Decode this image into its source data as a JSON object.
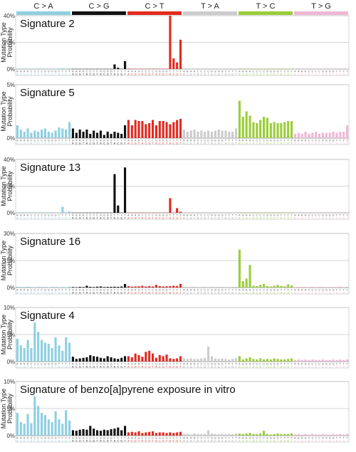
{
  "header": {
    "groups": [
      {
        "label": "C > A",
        "color": "#8ecfe0"
      },
      {
        "label": "C > G",
        "color": "#111111"
      },
      {
        "label": "C > T",
        "color": "#e32a20"
      },
      {
        "label": "T > A",
        "color": "#cccccc"
      },
      {
        "label": "T > C",
        "color": "#9acd3a"
      },
      {
        "label": "T > G",
        "color": "#efb7d6"
      }
    ]
  },
  "ylabel_line1": "Mutation Type",
  "ylabel_line2": "Probability",
  "contexts": [
    "A.A",
    "A.C",
    "A.G",
    "A.T",
    "C.A",
    "C.C",
    "C.G",
    "C.T",
    "G.A",
    "G.C",
    "G.G",
    "G.T",
    "T.A",
    "T.C",
    "T.G",
    "T.T"
  ],
  "chart_data": [
    {
      "type": "bar",
      "title": "Signature 2",
      "ylim": [
        0,
        40
      ],
      "yticks": [
        "0%",
        "20%",
        "40%"
      ],
      "ytick_values": [
        0,
        20,
        40
      ],
      "values": {
        "C > A": [
          0.2,
          0.2,
          0.1,
          0.2,
          0.3,
          0.2,
          0.1,
          0.2,
          0.1,
          0.1,
          0.1,
          0.1,
          0.4,
          0.6,
          0.1,
          0.6
        ],
        "C > G": [
          0.1,
          0.1,
          0.1,
          0.1,
          0.1,
          0.1,
          0.1,
          0.1,
          0.1,
          0.1,
          0.1,
          0.1,
          3.5,
          1.0,
          0.2,
          6.0
        ],
        "C > T": [
          0.3,
          0.2,
          0.2,
          0.2,
          0.2,
          0.2,
          0.2,
          0.2,
          0.2,
          0.2,
          0.2,
          0.2,
          40.0,
          8.0,
          5.0,
          22.0
        ],
        "T > A": [
          0.1,
          0.1,
          0.1,
          0.1,
          0.1,
          0.1,
          0.1,
          0.1,
          0.1,
          0.1,
          0.1,
          0.1,
          0.1,
          0.1,
          0.1,
          0.1
        ],
        "T > C": [
          0.1,
          0.1,
          0.1,
          0.1,
          0.1,
          0.1,
          0.1,
          0.1,
          0.1,
          0.1,
          0.1,
          0.1,
          0.1,
          0.1,
          0.1,
          0.1
        ],
        "T > G": [
          0.1,
          0.1,
          0.1,
          0.1,
          0.1,
          0.1,
          0.1,
          0.1,
          0.1,
          0.1,
          0.1,
          0.1,
          0.1,
          0.1,
          0.1,
          0.1
        ]
      }
    },
    {
      "type": "bar",
      "title": "Signature 5",
      "ylim": [
        0,
        5
      ],
      "yticks": [
        "0%",
        "5%"
      ],
      "ytick_values": [
        0,
        5
      ],
      "values": {
        "C > A": [
          1.2,
          0.8,
          0.6,
          0.9,
          0.5,
          0.7,
          0.6,
          0.8,
          0.9,
          0.6,
          0.5,
          0.7,
          1.0,
          0.9,
          0.8,
          1.5
        ],
        "C > G": [
          0.9,
          0.5,
          0.8,
          0.6,
          0.8,
          0.4,
          0.7,
          0.5,
          0.7,
          0.3,
          0.6,
          0.4,
          0.6,
          0.5,
          0.4,
          1.2
        ],
        "C > T": [
          1.7,
          1.2,
          1.7,
          1.6,
          1.6,
          1.3,
          1.4,
          1.7,
          1.2,
          1.6,
          1.6,
          1.5,
          1.3,
          1.5,
          1.7,
          1.8
        ],
        "T > A": [
          0.8,
          0.6,
          0.7,
          0.8,
          0.6,
          0.7,
          0.6,
          0.7,
          0.6,
          0.7,
          0.8,
          0.7,
          0.7,
          0.6,
          0.6,
          0.9
        ],
        "T > C": [
          3.5,
          2.0,
          2.5,
          2.1,
          1.5,
          1.4,
          1.7,
          2.0,
          1.9,
          1.4,
          1.5,
          1.4,
          1.4,
          1.5,
          1.6,
          1.6
        ],
        "T > G": [
          0.4,
          0.5,
          0.4,
          0.6,
          0.4,
          0.5,
          0.6,
          0.4,
          0.5,
          0.5,
          0.5,
          0.6,
          0.5,
          0.6,
          0.6,
          1.2
        ]
      }
    },
    {
      "type": "bar",
      "title": "Signature 13",
      "ylim": [
        0,
        40
      ],
      "yticks": [
        "0%",
        "20%",
        "40%"
      ],
      "ytick_values": [
        0,
        20,
        40
      ],
      "values": {
        "C > A": [
          0.1,
          0.2,
          0.1,
          0.1,
          0.1,
          0.1,
          0.1,
          0.1,
          0.1,
          0.1,
          0.1,
          0.1,
          0.3,
          4.5,
          0.4,
          1.0
        ],
        "C > G": [
          0.1,
          0.1,
          0.1,
          0.1,
          0.1,
          0.1,
          0.1,
          0.1,
          0.1,
          0.1,
          0.1,
          0.1,
          29.0,
          5.5,
          0.2,
          34.0
        ],
        "C > T": [
          0.1,
          0.1,
          0.1,
          0.1,
          0.1,
          0.1,
          0.1,
          0.1,
          0.1,
          0.1,
          0.1,
          0.1,
          0.1,
          0.1,
          0.1,
          0.1
        ],
        "T > A": [
          0.1,
          0.1,
          0.1,
          0.1,
          0.1,
          0.1,
          0.1,
          0.1,
          0.1,
          0.1,
          0.1,
          0.1,
          0.1,
          0.1,
          0.1,
          0.1
        ],
        "T > C": [
          0.1,
          0.1,
          0.1,
          0.1,
          0.1,
          0.1,
          0.1,
          0.1,
          0.1,
          0.1,
          0.1,
          0.1,
          0.1,
          0.1,
          0.1,
          0.1
        ],
        "T > G": [
          0.1,
          0.1,
          0.1,
          0.1,
          0.1,
          0.1,
          0.1,
          0.1,
          0.1,
          0.1,
          0.1,
          0.1,
          0.1,
          0.1,
          0.1,
          0.1
        ]
      },
      "overrides": {
        "C > T": [
          [
            12,
            11.0
          ],
          [
            14,
            3.5
          ],
          [
            15,
            0.8
          ]
        ]
      }
    },
    {
      "type": "bar",
      "title": "Signature 16",
      "ylim": [
        0,
        30
      ],
      "yticks": [
        "0%",
        "15%",
        "30%"
      ],
      "ytick_values": [
        0,
        15,
        30
      ],
      "values": {
        "C > A": [
          0.4,
          0.3,
          0.3,
          0.4,
          0.3,
          0.2,
          0.3,
          0.3,
          0.3,
          0.2,
          0.3,
          0.3,
          0.2,
          0.3,
          0.2,
          0.5
        ],
        "C > G": [
          0.3,
          0.2,
          0.4,
          0.3,
          1.0,
          0.4,
          0.3,
          0.5,
          0.6,
          0.3,
          0.4,
          0.4,
          0.5,
          0.4,
          0.6,
          2.0
        ],
        "C > T": [
          0.8,
          0.5,
          0.6,
          0.7,
          1.0,
          0.6,
          0.8,
          0.6,
          1.5,
          0.8,
          0.6,
          0.7,
          0.8,
          1.0,
          0.9,
          2.0
        ],
        "T > A": [
          0.4,
          0.3,
          0.4,
          0.4,
          0.3,
          0.3,
          0.4,
          0.3,
          0.4,
          0.3,
          0.4,
          0.4,
          0.3,
          0.3,
          0.4,
          0.4
        ],
        "T > C": [
          21.0,
          3.5,
          5.0,
          12.5,
          1.0,
          0.8,
          1.5,
          2.0,
          0.8,
          0.6,
          1.0,
          1.5,
          0.9,
          0.7,
          1.8,
          1.2
        ],
        "T > G": [
          0.3,
          0.4,
          0.4,
          0.4,
          0.3,
          0.4,
          0.3,
          0.4,
          0.4,
          0.3,
          0.4,
          0.3,
          0.4,
          0.5,
          0.3,
          0.4
        ]
      }
    },
    {
      "type": "bar",
      "title": "Signature 4",
      "ylim": [
        0,
        10
      ],
      "yticks": [
        "0%",
        "5%",
        "10%"
      ],
      "ytick_values": [
        0,
        5,
        10
      ],
      "values": {
        "C > A": [
          4.2,
          3.0,
          2.5,
          4.0,
          2.5,
          7.2,
          5.5,
          4.0,
          3.5,
          3.3,
          2.5,
          4.5,
          3.0,
          2.0,
          4.5,
          3.5
        ],
        "C > G": [
          0.9,
          0.5,
          0.6,
          0.7,
          0.8,
          1.2,
          1.0,
          0.9,
          0.7,
          0.6,
          1.0,
          0.8,
          0.6,
          0.5,
          0.7,
          1.0
        ],
        "C > T": [
          1.0,
          0.8,
          1.5,
          1.2,
          0.9,
          1.8,
          2.0,
          1.5,
          0.7,
          1.2,
          1.0,
          1.3,
          0.6,
          0.5,
          0.6,
          1.0
        ],
        "T > A": [
          0.6,
          0.5,
          0.6,
          0.5,
          0.5,
          0.6,
          0.7,
          2.8,
          1.0,
          0.6,
          0.5,
          0.6,
          0.5,
          0.4,
          0.5,
          0.6
        ],
        "T > C": [
          1.0,
          0.4,
          0.6,
          0.8,
          0.5,
          0.4,
          0.6,
          0.4,
          0.5,
          0.4,
          0.6,
          0.5,
          0.4,
          0.4,
          0.5,
          0.6
        ],
        "T > G": [
          0.3,
          0.4,
          0.3,
          0.4,
          0.3,
          0.4,
          0.3,
          0.3,
          0.4,
          0.3,
          0.3,
          0.4,
          0.3,
          0.4,
          0.3,
          0.4
        ]
      }
    },
    {
      "type": "bar",
      "title": "Signature of benzo[a]pyrene exposure in vitro",
      "ylim": [
        0,
        10
      ],
      "yticks": [
        "0%",
        "5%",
        "10%"
      ],
      "ytick_values": [
        0,
        5,
        10
      ],
      "values": {
        "C > A": [
          4.2,
          2.5,
          2.2,
          4.0,
          2.3,
          7.3,
          5.5,
          4.2,
          3.8,
          3.0,
          2.5,
          4.5,
          3.0,
          2.2,
          4.7,
          2.8
        ],
        "C > G": [
          1.0,
          0.9,
          1.1,
          1.2,
          1.1,
          1.8,
          1.3,
          1.0,
          0.9,
          1.1,
          1.0,
          1.2,
          1.3,
          1.5,
          1.0,
          1.8
        ],
        "C > T": [
          0.6,
          0.7,
          0.6,
          0.8,
          0.5,
          0.6,
          0.7,
          0.8,
          0.5,
          0.6,
          0.6,
          0.5,
          0.6,
          0.5,
          0.6,
          0.7
        ],
        "T > A": [
          0.3,
          0.3,
          0.2,
          0.4,
          0.3,
          0.3,
          0.3,
          1.0,
          0.4,
          0.3,
          0.3,
          0.3,
          0.3,
          0.3,
          0.3,
          0.4
        ],
        "T > C": [
          0.4,
          0.3,
          0.4,
          0.5,
          0.3,
          0.3,
          0.4,
          0.9,
          0.3,
          0.2,
          0.3,
          0.4,
          0.3,
          0.3,
          0.3,
          0.4
        ],
        "T > G": [
          0.2,
          0.3,
          0.2,
          0.3,
          0.2,
          0.3,
          0.2,
          0.2,
          0.3,
          0.2,
          0.2,
          0.3,
          0.2,
          0.3,
          0.2,
          0.3
        ]
      }
    }
  ]
}
